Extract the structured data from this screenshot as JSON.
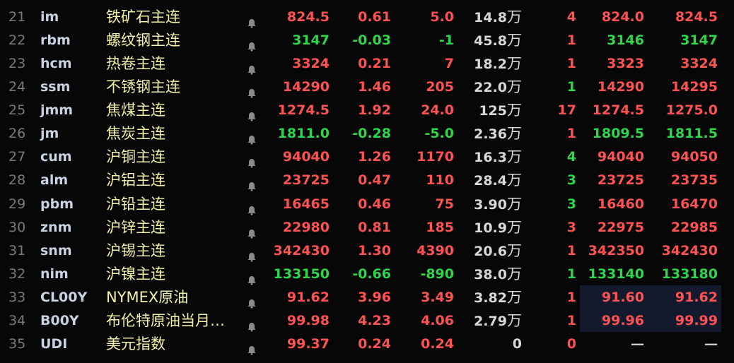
{
  "colors": {
    "up": "#ff5252",
    "down": "#2fd54a",
    "name": "#f2f0a8",
    "highlight": "#131a2e"
  },
  "unit": "万",
  "rows": [
    {
      "idx": "21",
      "code": "im",
      "name": "铁矿石主连",
      "price": "824.5",
      "chg": "0.61",
      "amt": "5.0",
      "vol": "14.8",
      "wan": true,
      "cnt": "4",
      "bid": "824.0",
      "ask": "824.5",
      "dir": "up",
      "cdir": "up"
    },
    {
      "idx": "22",
      "code": "rbm",
      "name": "螺纹钢主连",
      "price": "3147",
      "chg": "-0.03",
      "amt": "-1",
      "vol": "45.8",
      "wan": true,
      "cnt": "1",
      "bid": "3146",
      "ask": "3147",
      "dir": "dn",
      "cdir": "up"
    },
    {
      "idx": "23",
      "code": "hcm",
      "name": "热卷主连",
      "price": "3324",
      "chg": "0.21",
      "amt": "7",
      "vol": "18.2",
      "wan": true,
      "cnt": "1",
      "bid": "3323",
      "ask": "3324",
      "dir": "up",
      "cdir": "up"
    },
    {
      "idx": "24",
      "code": "ssm",
      "name": "不锈钢主连",
      "price": "14290",
      "chg": "1.46",
      "amt": "205",
      "vol": "22.0",
      "wan": true,
      "cnt": "1",
      "bid": "14290",
      "ask": "14295",
      "dir": "up",
      "cdir": "dn"
    },
    {
      "idx": "25",
      "code": "jmm",
      "name": "焦煤主连",
      "price": "1274.5",
      "chg": "1.92",
      "amt": "24.0",
      "vol": "125",
      "wan": true,
      "cnt": "17",
      "bid": "1274.5",
      "ask": "1275.0",
      "dir": "up",
      "cdir": "up"
    },
    {
      "idx": "26",
      "code": "jm",
      "name": "焦炭主连",
      "price": "1811.0",
      "chg": "-0.28",
      "amt": "-5.0",
      "vol": "2.36",
      "wan": true,
      "cnt": "1",
      "bid": "1809.5",
      "ask": "1811.5",
      "dir": "dn",
      "cdir": "up"
    },
    {
      "idx": "27",
      "code": "cum",
      "name": "沪铜主连",
      "price": "94040",
      "chg": "1.26",
      "amt": "1170",
      "vol": "16.3",
      "wan": true,
      "cnt": "4",
      "bid": "94040",
      "ask": "94050",
      "dir": "up",
      "cdir": "dn"
    },
    {
      "idx": "28",
      "code": "alm",
      "name": "沪铝主连",
      "price": "23725",
      "chg": "0.47",
      "amt": "110",
      "vol": "28.4",
      "wan": true,
      "cnt": "3",
      "bid": "23725",
      "ask": "23735",
      "dir": "up",
      "cdir": "dn"
    },
    {
      "idx": "29",
      "code": "pbm",
      "name": "沪铅主连",
      "price": "16465",
      "chg": "0.46",
      "amt": "75",
      "vol": "3.90",
      "wan": true,
      "cnt": "3",
      "bid": "16460",
      "ask": "16470",
      "dir": "up",
      "cdir": "dn"
    },
    {
      "idx": "30",
      "code": "znm",
      "name": "沪锌主连",
      "price": "22980",
      "chg": "0.81",
      "amt": "185",
      "vol": "10.9",
      "wan": true,
      "cnt": "3",
      "bid": "22975",
      "ask": "22985",
      "dir": "up",
      "cdir": "up"
    },
    {
      "idx": "31",
      "code": "snm",
      "name": "沪锡主连",
      "price": "342430",
      "chg": "1.30",
      "amt": "4390",
      "vol": "20.6",
      "wan": true,
      "cnt": "1",
      "bid": "342350",
      "ask": "342430",
      "dir": "up",
      "cdir": "up"
    },
    {
      "idx": "32",
      "code": "nim",
      "name": "沪镍主连",
      "price": "133150",
      "chg": "-0.66",
      "amt": "-890",
      "vol": "38.0",
      "wan": true,
      "cnt": "1",
      "bid": "133140",
      "ask": "133180",
      "dir": "dn",
      "cdir": "dn"
    },
    {
      "idx": "33",
      "code": "CL00Y",
      "name": "NYMEX原油",
      "price": "91.62",
      "chg": "3.96",
      "amt": "3.49",
      "vol": "3.82",
      "wan": true,
      "cnt": "1",
      "bid": "91.60",
      "ask": "91.62",
      "dir": "up",
      "cdir": "up"
    },
    {
      "idx": "34",
      "code": "B00Y",
      "name": "布伦特原油当月…",
      "price": "99.98",
      "chg": "4.23",
      "amt": "4.06",
      "vol": "2.79",
      "wan": true,
      "cnt": "1",
      "bid": "99.96",
      "ask": "99.99",
      "dir": "up",
      "cdir": "up"
    },
    {
      "idx": "35",
      "code": "UDI",
      "name": "美元指数",
      "price": "99.37",
      "chg": "0.24",
      "amt": "0.24",
      "vol": "0",
      "wan": false,
      "cnt": "0",
      "bid": "—",
      "ask": "—",
      "dir": "up",
      "cdir": "up",
      "bdir": "na"
    }
  ]
}
